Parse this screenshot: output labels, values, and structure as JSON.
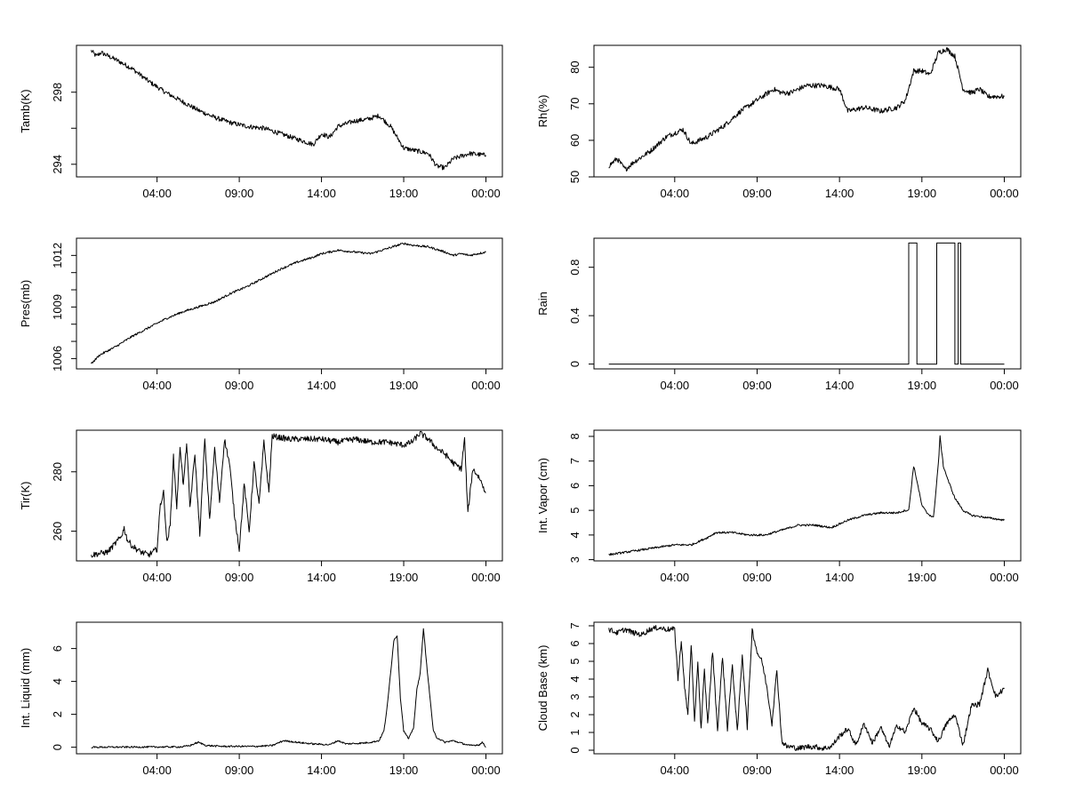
{
  "figure": {
    "x_tick_labels": [
      "04:00",
      "09:00",
      "14:00",
      "19:00",
      "00:00"
    ],
    "x_tick_hours": [
      4,
      9,
      14,
      19,
      24
    ],
    "x_range_hours": [
      -0.9,
      25.0
    ],
    "data_start_hour": 0.0,
    "data_end_hour": 24.0
  },
  "chart_data": [
    {
      "type": "line",
      "ylabel": "Tamb(K)",
      "ylim": [
        293.3,
        300.6
      ],
      "yticks": [
        294,
        298
      ],
      "yminor": [
        296
      ],
      "series": [
        {
          "name": "Tamb(K)",
          "x_hours": [
            0.0,
            0.3,
            0.6,
            1.5,
            2.5,
            3.5,
            4.5,
            5.5,
            6.5,
            7.5,
            8.5,
            9.5,
            10.5,
            11.5,
            12.5,
            13.5,
            14.0,
            14.5,
            15.0,
            16.0,
            16.8,
            17.5,
            18.2,
            19.0,
            19.5,
            20.5,
            21.0,
            21.5,
            22.0,
            23.0,
            24.0
          ],
          "values": [
            300.3,
            300.0,
            300.2,
            299.8,
            299.3,
            298.6,
            298.0,
            297.5,
            297.0,
            296.6,
            296.3,
            296.1,
            296.0,
            295.7,
            295.4,
            295.1,
            295.7,
            295.5,
            296.1,
            296.4,
            296.5,
            296.7,
            296.1,
            294.9,
            294.8,
            294.6,
            293.9,
            293.8,
            294.3,
            294.6,
            294.5
          ],
          "noise": 0.13
        }
      ]
    },
    {
      "type": "line",
      "ylabel": "Rh(%)",
      "ylim": [
        50,
        86
      ],
      "yticks": [
        50,
        60,
        70,
        80
      ],
      "yminor": [],
      "series": [
        {
          "name": "Rh(%)",
          "x_hours": [
            0.0,
            0.5,
            1.0,
            1.5,
            2.5,
            3.5,
            4.5,
            5.0,
            6.0,
            7.0,
            8.0,
            9.0,
            10.0,
            10.5,
            11.0,
            12.0,
            13.0,
            14.0,
            14.5,
            15.5,
            16.5,
            17.5,
            18.0,
            18.5,
            19.0,
            19.5,
            20.0,
            20.5,
            21.0,
            21.5,
            22.0,
            22.5,
            23.0,
            24.0
          ],
          "values": [
            53,
            55,
            52,
            54,
            57,
            61,
            63,
            59,
            61,
            64,
            68,
            71,
            74,
            73,
            73,
            75,
            75,
            74,
            68,
            69,
            68,
            69,
            71,
            79,
            79,
            78,
            84,
            85,
            83,
            74,
            73,
            74,
            72,
            72
          ],
          "noise": 0.7
        }
      ]
    },
    {
      "type": "line",
      "ylabel": "Pres(mb)",
      "ylim": [
        1005.4,
        1013.0
      ],
      "yticks": [
        1006,
        1009,
        1012
      ],
      "yminor": [
        1007,
        1008,
        1010,
        1011
      ],
      "series": [
        {
          "name": "Pres(mb)",
          "x_hours": [
            0.0,
            0.5,
            1.5,
            2.5,
            3.5,
            4.5,
            5.5,
            6.5,
            7.5,
            8.5,
            9.5,
            10.5,
            11.5,
            12.5,
            13.5,
            14.0,
            15.0,
            16.0,
            17.0,
            18.0,
            19.0,
            19.5,
            20.5,
            21.5,
            22.0,
            22.5,
            23.0,
            24.0
          ],
          "values": [
            1005.7,
            1006.2,
            1006.7,
            1007.3,
            1007.8,
            1008.3,
            1008.7,
            1009.0,
            1009.3,
            1009.8,
            1010.2,
            1010.7,
            1011.2,
            1011.6,
            1011.9,
            1012.1,
            1012.3,
            1012.2,
            1012.1,
            1012.4,
            1012.7,
            1012.6,
            1012.5,
            1012.2,
            1012.0,
            1012.1,
            1012.0,
            1012.2
          ],
          "noise": 0.06
        }
      ]
    },
    {
      "type": "line",
      "ylabel": "Rain",
      "ylim": [
        -0.04,
        1.04
      ],
      "yticks": [
        0.0,
        0.4,
        0.8
      ],
      "yminor": [],
      "series": [
        {
          "name": "Rain",
          "x_hours": [
            0.0,
            18.2,
            18.2,
            18.7,
            18.7,
            19.9,
            19.9,
            21.0,
            21.0,
            21.2,
            21.2,
            21.35,
            21.35,
            24.0
          ],
          "values": [
            0,
            0,
            1,
            1,
            0,
            0,
            1,
            1,
            0,
            0,
            1,
            1,
            0,
            0
          ],
          "noise": 0
        }
      ]
    },
    {
      "type": "line",
      "ylabel": "Tir(K)",
      "ylim": [
        250,
        294
      ],
      "yticks": [
        260,
        280
      ],
      "yminor": [],
      "series": [
        {
          "name": "Tir(K)",
          "x_hours": [
            0.0,
            1.0,
            1.8,
            2.0,
            2.2,
            2.5,
            3.0,
            3.5,
            4.0,
            4.2,
            4.4,
            4.6,
            4.8,
            5.0,
            5.2,
            5.4,
            5.6,
            5.8,
            6.0,
            6.3,
            6.6,
            6.9,
            7.2,
            7.5,
            7.8,
            8.1,
            8.4,
            8.7,
            9.0,
            9.3,
            9.6,
            9.9,
            10.2,
            10.5,
            10.8,
            11.0,
            12.0,
            13.0,
            14.0,
            15.0,
            16.0,
            17.0,
            18.0,
            19.0,
            19.5,
            20.0,
            20.5,
            21.0,
            21.5,
            22.0,
            22.5,
            22.7,
            22.9,
            23.2,
            23.6,
            24.0
          ],
          "values": [
            252,
            253,
            258,
            261,
            257,
            255,
            253,
            252,
            254,
            269,
            273,
            256,
            262,
            285,
            268,
            289,
            275,
            290,
            268,
            286,
            259,
            291,
            264,
            288,
            270,
            291,
            283,
            266,
            254,
            276,
            260,
            283,
            269,
            290,
            273,
            292,
            291,
            291,
            291,
            290,
            291,
            290,
            290,
            289,
            290,
            293,
            291,
            288,
            286,
            283,
            281,
            291,
            266,
            281,
            278,
            273
          ],
          "noise": 1.0
        }
      ]
    },
    {
      "type": "line",
      "ylabel": "Int. Vapor (cm)",
      "ylim": [
        2.95,
        8.25
      ],
      "yticks": [
        3,
        4,
        5,
        6,
        7,
        8
      ],
      "yminor": [],
      "series": [
        {
          "name": "Int. Vapor (cm)",
          "x_hours": [
            0.0,
            1.0,
            2.0,
            3.0,
            4.0,
            5.0,
            6.0,
            6.5,
            7.5,
            8.5,
            9.5,
            10.5,
            11.5,
            12.5,
            13.5,
            14.5,
            15.5,
            16.5,
            17.5,
            18.0,
            18.2,
            18.5,
            18.7,
            19.0,
            19.3,
            19.7,
            20.0,
            20.1,
            20.3,
            20.6,
            21.0,
            21.5,
            22.0,
            23.0,
            24.0
          ],
          "values": [
            3.2,
            3.3,
            3.4,
            3.5,
            3.6,
            3.6,
            3.9,
            4.1,
            4.1,
            4.0,
            4.0,
            4.2,
            4.4,
            4.4,
            4.3,
            4.6,
            4.8,
            4.9,
            4.9,
            5.0,
            5.0,
            6.8,
            6.2,
            5.2,
            4.9,
            4.7,
            6.9,
            8.0,
            6.8,
            6.2,
            5.5,
            5.0,
            4.8,
            4.7,
            4.6
          ],
          "noise": 0.04
        }
      ]
    },
    {
      "type": "line",
      "ylabel": "Int. Liquid (mm)",
      "ylim": [
        -0.4,
        7.6
      ],
      "yticks": [
        0,
        2,
        4,
        6
      ],
      "yminor": [],
      "series": [
        {
          "name": "Int. Liquid (mm)",
          "x_hours": [
            0.0,
            5.5,
            6.0,
            6.5,
            7.0,
            8.0,
            9.0,
            10.0,
            11.0,
            11.7,
            12.5,
            13.5,
            14.5,
            15.0,
            15.5,
            16.5,
            17.0,
            17.5,
            17.8,
            18.0,
            18.2,
            18.4,
            18.6,
            18.8,
            19.0,
            19.3,
            19.6,
            19.8,
            20.0,
            20.2,
            20.4,
            20.6,
            20.8,
            21.0,
            21.5,
            22.0,
            23.0,
            23.6,
            23.8,
            24.0
          ],
          "values": [
            0,
            0.02,
            0.1,
            0.3,
            0.1,
            0.05,
            0.05,
            0.05,
            0.1,
            0.4,
            0.3,
            0.2,
            0.15,
            0.4,
            0.2,
            0.25,
            0.3,
            0.4,
            1.0,
            2.5,
            4.5,
            6.5,
            6.8,
            3.0,
            1.0,
            0.5,
            1.2,
            3.5,
            4.5,
            7.2,
            5.0,
            3.0,
            1.0,
            0.6,
            0.3,
            0.4,
            0.1,
            0.15,
            0.3,
            0.0
          ],
          "noise": 0.05
        }
      ]
    },
    {
      "type": "line",
      "ylabel": "Cloud Base (km)",
      "ylim": [
        -0.2,
        7.2
      ],
      "yticks": [
        0,
        1,
        2,
        3,
        4,
        5,
        6,
        7
      ],
      "yminor": [],
      "series": [
        {
          "name": "Cloud Base (km)",
          "x_hours": [
            0.0,
            0.5,
            1.0,
            1.5,
            2.0,
            2.5,
            3.0,
            3.5,
            4.0,
            4.2,
            4.4,
            4.6,
            4.8,
            5.0,
            5.2,
            5.4,
            5.6,
            5.8,
            6.0,
            6.3,
            6.6,
            6.9,
            7.2,
            7.5,
            7.8,
            8.1,
            8.4,
            8.7,
            9.0,
            9.3,
            9.6,
            9.9,
            10.2,
            10.5,
            10.8,
            11.0,
            11.5,
            12.0,
            12.5,
            13.0,
            13.5,
            14.0,
            14.5,
            15.0,
            15.5,
            16.0,
            16.5,
            17.0,
            17.5,
            18.0,
            18.5,
            19.0,
            19.5,
            20.0,
            20.5,
            21.0,
            21.5,
            22.0,
            22.5,
            23.0,
            23.5,
            24.0
          ],
          "values": [
            6.8,
            6.6,
            6.8,
            6.6,
            6.5,
            6.8,
            6.9,
            6.8,
            6.8,
            4.0,
            6.2,
            3.5,
            2.0,
            6.0,
            1.5,
            5.0,
            1.2,
            4.5,
            1.5,
            5.6,
            1.1,
            5.3,
            1.2,
            4.8,
            1.0,
            5.4,
            1.3,
            6.8,
            5.5,
            5.0,
            3.5,
            1.5,
            4.5,
            0.5,
            0.2,
            0.2,
            0.1,
            0.2,
            0.2,
            0.1,
            0.2,
            0.8,
            1.2,
            0.3,
            1.5,
            0.4,
            1.3,
            0.2,
            1.4,
            1.0,
            2.4,
            1.5,
            1.2,
            0.5,
            1.5,
            2.0,
            0.3,
            2.5,
            2.6,
            4.5,
            3.0,
            3.5
          ],
          "noise": 0.15
        }
      ]
    }
  ]
}
